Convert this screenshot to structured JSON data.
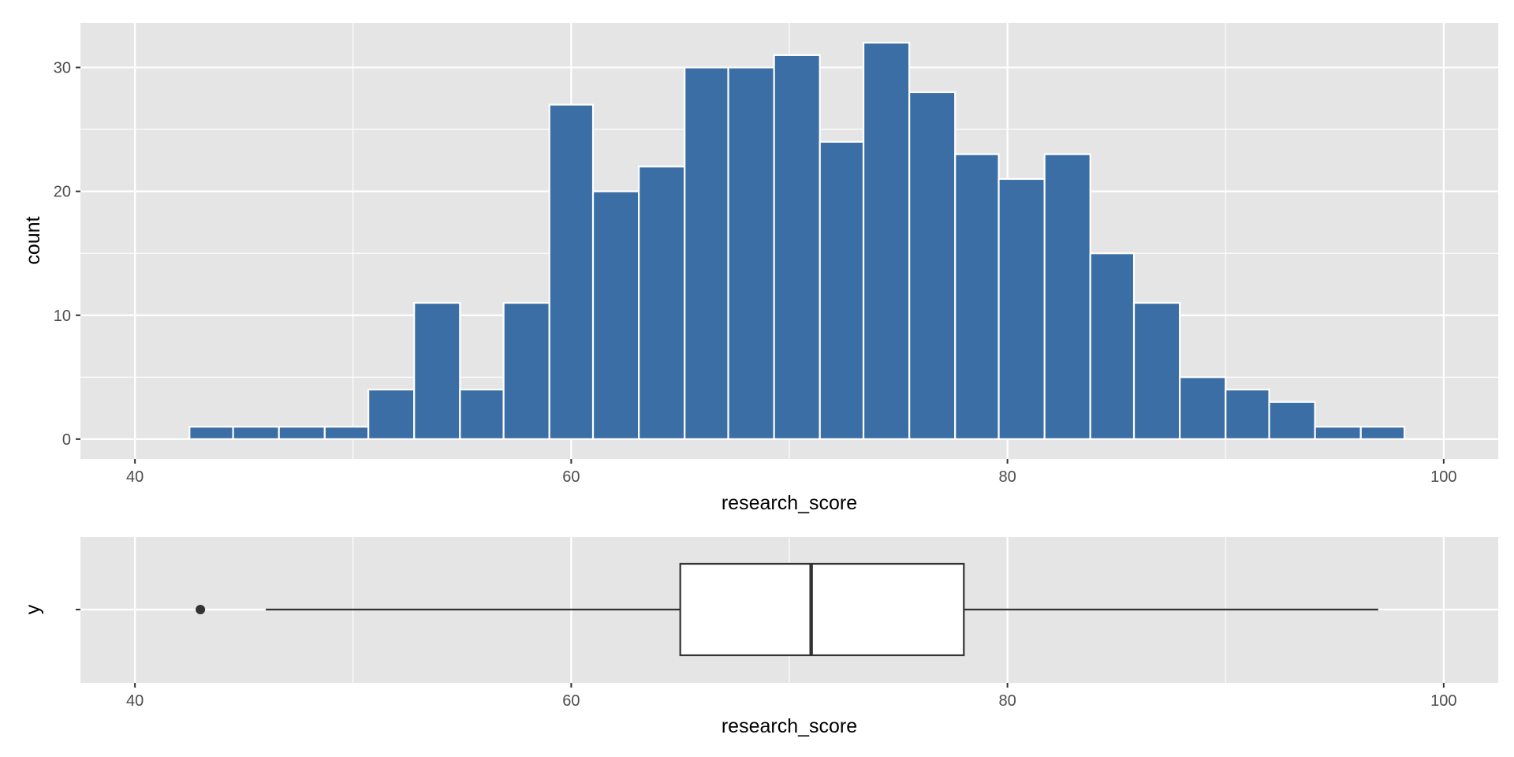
{
  "chart_data": [
    {
      "type": "bar",
      "subtype": "histogram",
      "xlabel": "research_score",
      "ylabel": "count",
      "xlim": [
        37.5,
        102.5
      ],
      "ylim": [
        -1.6,
        33.6
      ],
      "x_ticks": [
        40,
        60,
        80,
        100
      ],
      "y_ticks": [
        0,
        10,
        20,
        30
      ],
      "grid": true,
      "colors": {
        "fill": "#3a6ea5",
        "outline": "#ffffff",
        "panel": "#e5e5e5",
        "grid": "#ffffff"
      },
      "bins": [
        {
          "x0": 42.5,
          "x1": 44.5,
          "count": 1
        },
        {
          "x0": 44.5,
          "x1": 46.6,
          "count": 1
        },
        {
          "x0": 46.6,
          "x1": 48.7,
          "count": 1
        },
        {
          "x0": 48.7,
          "x1": 50.7,
          "count": 1
        },
        {
          "x0": 50.7,
          "x1": 52.8,
          "count": 4
        },
        {
          "x0": 52.8,
          "x1": 54.9,
          "count": 11
        },
        {
          "x0": 54.9,
          "x1": 56.9,
          "count": 4
        },
        {
          "x0": 56.9,
          "x1": 59.0,
          "count": 11
        },
        {
          "x0": 59.0,
          "x1": 61.0,
          "count": 27
        },
        {
          "x0": 61.0,
          "x1": 63.1,
          "count": 20
        },
        {
          "x0": 63.1,
          "x1": 65.2,
          "count": 22
        },
        {
          "x0": 65.2,
          "x1": 67.2,
          "count": 30
        },
        {
          "x0": 67.2,
          "x1": 69.3,
          "count": 30
        },
        {
          "x0": 69.3,
          "x1": 71.4,
          "count": 31
        },
        {
          "x0": 71.4,
          "x1": 73.4,
          "count": 24
        },
        {
          "x0": 73.4,
          "x1": 75.5,
          "count": 32
        },
        {
          "x0": 75.5,
          "x1": 77.6,
          "count": 28
        },
        {
          "x0": 77.6,
          "x1": 79.6,
          "count": 23
        },
        {
          "x0": 79.6,
          "x1": 81.7,
          "count": 21
        },
        {
          "x0": 81.7,
          "x1": 83.8,
          "count": 23
        },
        {
          "x0": 83.8,
          "x1": 85.8,
          "count": 15
        },
        {
          "x0": 85.8,
          "x1": 87.9,
          "count": 11
        },
        {
          "x0": 87.9,
          "x1": 90.0,
          "count": 5
        },
        {
          "x0": 90.0,
          "x1": 92.0,
          "count": 4
        },
        {
          "x0": 92.0,
          "x1": 94.1,
          "count": 3
        },
        {
          "x0": 94.1,
          "x1": 96.2,
          "count": 1
        },
        {
          "x0": 96.2,
          "x1": 98.2,
          "count": 1
        }
      ]
    },
    {
      "type": "boxplot",
      "xlabel": "research_score",
      "ylabel": "y",
      "xlim": [
        37.5,
        102.5
      ],
      "x_ticks": [
        40,
        60,
        80,
        100
      ],
      "grid": true,
      "colors": {
        "box_fill": "#ffffff",
        "line": "#333333"
      },
      "whisker_low": 46.0,
      "q1": 65.0,
      "median": 71.0,
      "q3": 78.0,
      "whisker_high": 97.0,
      "outliers": [
        43.0
      ]
    }
  ]
}
